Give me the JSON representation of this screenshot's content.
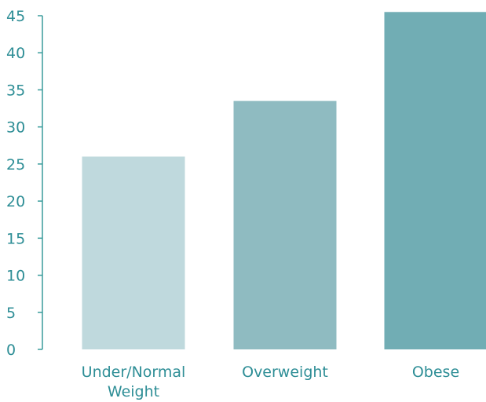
{
  "chart_data": {
    "type": "bar",
    "categories": [
      "Under/Normal\nWeight",
      "Overweight",
      "Obese"
    ],
    "values": [
      26,
      33.5,
      45.5
    ],
    "ylim": [
      0,
      45
    ],
    "yticks": [
      0,
      5,
      10,
      15,
      20,
      25,
      30,
      35,
      40,
      45
    ],
    "grid": false,
    "legend": "none",
    "colors": {
      "bars": [
        "#bfd9dd",
        "#8fbbc1",
        "#71adb4"
      ],
      "axis": "#3a9c9c",
      "text": "#2e8e96"
    }
  }
}
